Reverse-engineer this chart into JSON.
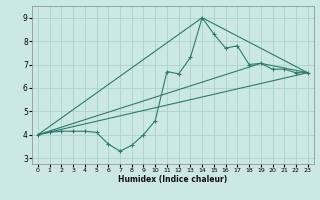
{
  "xlabel": "Humidex (Indice chaleur)",
  "bg_color": "#cce8e4",
  "line_color": "#2d7a6e",
  "grid_color": "#aad4cc",
  "xlim": [
    -0.5,
    23.5
  ],
  "ylim": [
    2.75,
    9.5
  ],
  "xticks": [
    0,
    1,
    2,
    3,
    4,
    5,
    6,
    7,
    8,
    9,
    10,
    11,
    12,
    13,
    14,
    15,
    16,
    17,
    18,
    19,
    20,
    21,
    22,
    23
  ],
  "yticks": [
    3,
    4,
    5,
    6,
    7,
    8,
    9
  ],
  "line1_x": [
    0,
    1,
    2,
    3,
    4,
    5,
    6,
    7,
    8,
    9,
    10,
    11,
    12,
    13,
    14,
    15,
    16,
    17,
    18,
    19,
    20,
    21,
    22,
    23
  ],
  "line1_y": [
    4.0,
    4.1,
    4.15,
    4.15,
    4.15,
    4.1,
    3.6,
    3.3,
    3.55,
    4.0,
    4.6,
    6.7,
    6.6,
    7.3,
    9.0,
    8.3,
    7.7,
    7.8,
    7.0,
    7.05,
    6.8,
    6.8,
    6.65,
    6.65
  ],
  "line2_x": [
    0,
    23
  ],
  "line2_y": [
    4.0,
    6.65
  ],
  "line3_x": [
    0,
    14,
    23
  ],
  "line3_y": [
    4.0,
    9.0,
    6.65
  ],
  "line4_x": [
    0,
    19,
    23
  ],
  "line4_y": [
    4.0,
    7.05,
    6.65
  ]
}
